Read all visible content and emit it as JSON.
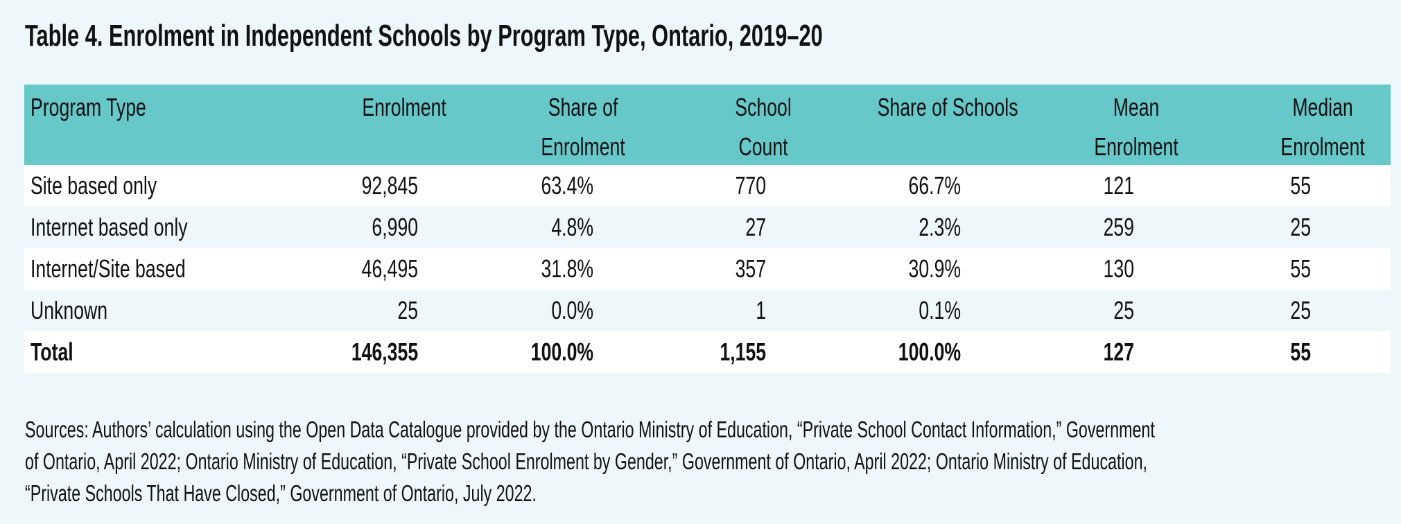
{
  "title": "Table 4. Enrolment in Independent Schools by Program Type, Ontario, 2019–20",
  "colors": {
    "page_background": "#eef7f9",
    "header_background": "#67c8c9",
    "row_white": "#ffffff",
    "row_tint": "#eef7f9",
    "text": "#111111"
  },
  "table": {
    "columns": [
      {
        "key": "program_type",
        "label_lines": [
          "Program Type",
          ""
        ]
      },
      {
        "key": "enrolment",
        "label_lines": [
          "Enrolment",
          ""
        ]
      },
      {
        "key": "share_of_enrolment",
        "label_lines": [
          "Share of",
          "Enrolment"
        ]
      },
      {
        "key": "school_count",
        "label_lines": [
          "School",
          "Count"
        ]
      },
      {
        "key": "share_of_schools",
        "label_lines": [
          "Share of Schools",
          ""
        ]
      },
      {
        "key": "mean_enrolment",
        "label_lines": [
          "Mean",
          "Enrolment"
        ]
      },
      {
        "key": "median_enrolment",
        "label_lines": [
          "Median",
          "Enrolment"
        ]
      }
    ],
    "rows": [
      [
        "Site based only",
        "92,845",
        "63.4%",
        "770",
        "66.7%",
        "121",
        "55"
      ],
      [
        "Internet based only",
        "6,990",
        "4.8%",
        "27",
        "2.3%",
        "259",
        "25"
      ],
      [
        "Internet/Site based",
        "46,495",
        "31.8%",
        "357",
        "30.9%",
        "130",
        "55"
      ],
      [
        "Unknown",
        "25",
        "0.0%",
        "1",
        "0.1%",
        "25",
        "25"
      ]
    ],
    "total": [
      "Total",
      "146,355",
      "100.0%",
      "1,155",
      "100.0%",
      "127",
      "55"
    ]
  },
  "sources": {
    "lines": [
      "Sources: Authors’ calculation using the Open Data Catalogue provided by the Ontario Ministry of Education, “Private School Contact Information,” Government",
      "of Ontario, April 2022; Ontario Ministry of Education, “Private School Enrolment by Gender,” Government of Ontario, April 2022; Ontario Ministry of Education,",
      "“Private Schools That Have Closed,” Government of Ontario, July 2022."
    ]
  }
}
